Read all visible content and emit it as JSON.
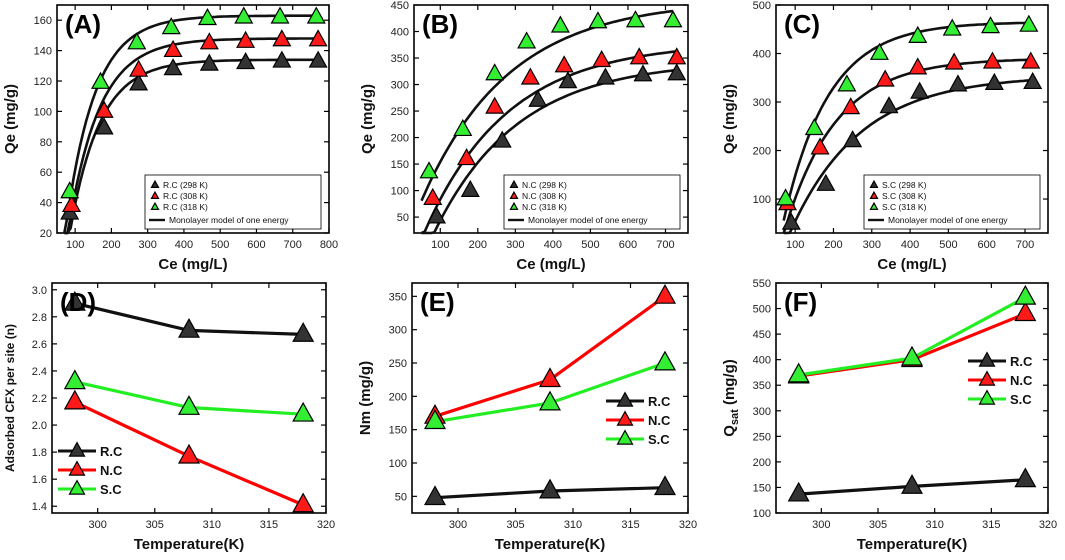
{
  "colors": {
    "black": "#333333",
    "red": "#ff1a1a",
    "green": "#33ee33",
    "line_black": "#111111",
    "line_red": "#ff0000",
    "line_green": "#22ee22"
  },
  "chart_data": [
    {
      "id": "A",
      "type": "scatter",
      "label": "(A)",
      "xlabel": "Ce (mg/L)",
      "ylabel": "Qe (mg/g)",
      "xlim": [
        50,
        800
      ],
      "ylim": [
        20,
        170
      ],
      "xticks": [
        100,
        200,
        300,
        400,
        500,
        600,
        700,
        800
      ],
      "yticks": [
        20,
        40,
        60,
        80,
        100,
        120,
        140,
        160
      ],
      "legend_position": "bottom-right",
      "fit_label": "Monolayer model of one energy",
      "series": [
        {
          "name": "R.C (298 K)",
          "color": "black",
          "x": [
            85,
            180,
            275,
            370,
            470,
            570,
            670,
            770
          ],
          "y": [
            33,
            89,
            118,
            128,
            131,
            132,
            133,
            133
          ],
          "fit": {
            "qmax": 134,
            "k": 0.0122,
            "x0": 72
          }
        },
        {
          "name": "R.C (308 K)",
          "color": "red",
          "x": [
            90,
            180,
            275,
            370,
            470,
            570,
            670,
            770
          ],
          "y": [
            38,
            100,
            127,
            140,
            145,
            146,
            147,
            147
          ],
          "fit": {
            "qmax": 148,
            "k": 0.0118,
            "x0": 68
          }
        },
        {
          "name": "R.C (318 K)",
          "color": "green",
          "x": [
            85,
            170,
            270,
            365,
            465,
            565,
            665,
            765
          ],
          "y": [
            47,
            119,
            145,
            155,
            161,
            162,
            162,
            162
          ],
          "fit": {
            "qmax": 163,
            "k": 0.0125,
            "x0": 62
          }
        }
      ]
    },
    {
      "id": "B",
      "type": "scatter",
      "label": "(B)",
      "xlabel": "Ce (mg/L)",
      "ylabel": "Qe (mg/g)",
      "xlim": [
        30,
        760
      ],
      "ylim": [
        20,
        450
      ],
      "xticks": [
        100,
        200,
        300,
        400,
        500,
        600,
        700
      ],
      "yticks": [
        50,
        100,
        150,
        200,
        250,
        300,
        350,
        400,
        450
      ],
      "legend_position": "bottom-right",
      "fit_label": "Monolayer model of one energy",
      "series": [
        {
          "name": "N.C (298 K)",
          "color": "black",
          "x": [
            90,
            180,
            265,
            360,
            440,
            540,
            640,
            730
          ],
          "y": [
            50,
            100,
            193,
            270,
            305,
            312,
            318,
            320
          ],
          "fit": {
            "qmax": 345,
            "k": 0.0045,
            "x0": 70
          }
        },
        {
          "name": "N.C (308 K)",
          "color": "red",
          "x": [
            80,
            170,
            245,
            340,
            430,
            530,
            630,
            730
          ],
          "y": [
            85,
            160,
            257,
            312,
            335,
            345,
            350,
            350
          ],
          "fit": {
            "qmax": 380,
            "k": 0.0045,
            "x0": 45
          }
        },
        {
          "name": "N.C (318 K)",
          "color": "green",
          "x": [
            70,
            160,
            245,
            330,
            420,
            520,
            620,
            720
          ],
          "y": [
            135,
            215,
            320,
            380,
            410,
            418,
            420,
            420
          ],
          "fit": {
            "qmax": 460,
            "k": 0.0043,
            "x0": 5
          }
        }
      ]
    },
    {
      "id": "C",
      "type": "scatter",
      "label": "(C)",
      "xlabel": "Ce (mg/L)",
      "ylabel": "Qe (mg/g)",
      "xlim": [
        50,
        760
      ],
      "ylim": [
        30,
        500
      ],
      "xticks": [
        100,
        200,
        300,
        400,
        500,
        600,
        700
      ],
      "yticks": [
        100,
        200,
        300,
        400,
        500
      ],
      "legend_position": "bottom-right",
      "fit_label": "Monolayer model of one energy",
      "series": [
        {
          "name": "S.C (298 K)",
          "color": "black",
          "x": [
            90,
            180,
            250,
            345,
            425,
            525,
            620,
            720
          ],
          "y": [
            50,
            130,
            220,
            290,
            320,
            335,
            338,
            340
          ],
          "fit": {
            "qmax": 355,
            "k": 0.0055,
            "x0": 70
          }
        },
        {
          "name": "S.C (308 K)",
          "color": "red",
          "x": [
            80,
            165,
            245,
            335,
            420,
            515,
            615,
            715
          ],
          "y": [
            90,
            205,
            288,
            345,
            370,
            380,
            382,
            382
          ],
          "fit": {
            "qmax": 390,
            "k": 0.0075,
            "x0": 60
          }
        },
        {
          "name": "S.C (318 K)",
          "color": "green",
          "x": [
            75,
            150,
            235,
            320,
            420,
            510,
            610,
            710
          ],
          "y": [
            100,
            245,
            335,
            400,
            435,
            450,
            455,
            458
          ],
          "fit": {
            "qmax": 465,
            "k": 0.0085,
            "x0": 55
          }
        }
      ]
    },
    {
      "id": "D",
      "type": "line",
      "label": "(D)",
      "xlabel": "Temperature(K)",
      "ylabel": "Adsorbed CFX per site (n)",
      "xlim": [
        296,
        320
      ],
      "ylim": [
        1.35,
        3.05
      ],
      "xticks": [
        300,
        305,
        310,
        315,
        320
      ],
      "yticks": [
        1.4,
        1.6,
        1.8,
        2.0,
        2.2,
        2.4,
        2.6,
        2.8,
        3.0
      ],
      "legend_position": "bottom-left",
      "x": [
        298,
        308,
        318
      ],
      "series": [
        {
          "name": "R.C",
          "color": "black",
          "values": [
            2.9,
            2.7,
            2.67
          ]
        },
        {
          "name": "N.C",
          "color": "red",
          "values": [
            2.17,
            1.77,
            1.41
          ]
        },
        {
          "name": "S.C",
          "color": "green",
          "values": [
            2.32,
            2.13,
            2.08
          ]
        }
      ]
    },
    {
      "id": "E",
      "type": "line",
      "label": "(E)",
      "xlabel": "Temperature(K)",
      "ylabel": "Nm (mg/g)",
      "xlim": [
        296,
        320
      ],
      "ylim": [
        25,
        370
      ],
      "xticks": [
        300,
        305,
        310,
        315,
        320
      ],
      "yticks": [
        50,
        100,
        150,
        200,
        250,
        300,
        350
      ],
      "legend_position": "center-right",
      "x": [
        298,
        308,
        318
      ],
      "series": [
        {
          "name": "R.C",
          "color": "black",
          "values": [
            48,
            58,
            63
          ]
        },
        {
          "name": "N.C",
          "color": "red",
          "values": [
            170,
            225,
            350
          ]
        },
        {
          "name": "S.C",
          "color": "green",
          "values": [
            162,
            190,
            250
          ]
        }
      ]
    },
    {
      "id": "F",
      "type": "line",
      "label": "(F)",
      "xlabel": "Temperature(K)",
      "ylabel_main": "Q",
      "ylabel_sub": "sat",
      "ylabel_unit": " (mg/g)",
      "xlim": [
        296,
        320
      ],
      "ylim": [
        100,
        550
      ],
      "xticks": [
        300,
        305,
        310,
        315,
        320
      ],
      "yticks": [
        100,
        150,
        200,
        250,
        300,
        350,
        400,
        450,
        500,
        550
      ],
      "legend_position": "center-right",
      "x": [
        298,
        308,
        318
      ],
      "series": [
        {
          "name": "R.C",
          "color": "black",
          "values": [
            137,
            152,
            165
          ]
        },
        {
          "name": "N.C",
          "color": "red",
          "values": [
            368,
            400,
            490
          ]
        },
        {
          "name": "S.C",
          "color": "green",
          "values": [
            370,
            403,
            522
          ]
        }
      ]
    }
  ]
}
